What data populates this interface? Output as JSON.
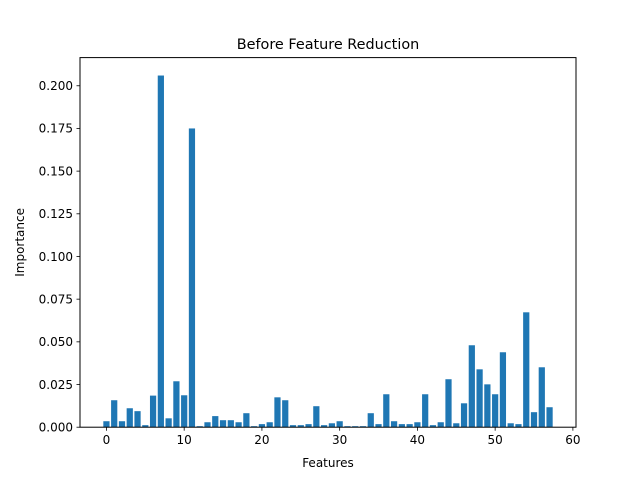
{
  "chart_data": {
    "type": "bar",
    "title": "Before Feature Reduction",
    "xlabel": "Features",
    "ylabel": "Importance",
    "xlim": [
      -3.4,
      60.4
    ],
    "ylim": [
      0,
      0.2165
    ],
    "xticks": [
      0,
      10,
      20,
      30,
      40,
      50,
      60
    ],
    "xtick_labels": [
      "0",
      "10",
      "20",
      "30",
      "40",
      "50",
      "60"
    ],
    "yticks": [
      0,
      0.025,
      0.05,
      0.075,
      0.1,
      0.125,
      0.15,
      0.175,
      0.2
    ],
    "ytick_labels": [
      "0.000",
      "0.025",
      "0.050",
      "0.075",
      "0.100",
      "0.125",
      "0.150",
      "0.175",
      "0.200"
    ],
    "bar_color": "#1f77b4",
    "grid": false,
    "legend": "none",
    "x": [
      0,
      1,
      2,
      3,
      4,
      5,
      6,
      7,
      8,
      9,
      10,
      11,
      12,
      13,
      14,
      15,
      16,
      17,
      18,
      19,
      20,
      21,
      22,
      23,
      24,
      25,
      26,
      27,
      28,
      29,
      30,
      31,
      32,
      33,
      34,
      35,
      36,
      37,
      38,
      39,
      40,
      41,
      42,
      43,
      44,
      45,
      46,
      47,
      48,
      49,
      50,
      51,
      52,
      53,
      54,
      55,
      56,
      57
    ],
    "values": [
      0.0035,
      0.0158,
      0.0035,
      0.0111,
      0.0094,
      0.0012,
      0.0185,
      0.206,
      0.0052,
      0.0269,
      0.0187,
      0.175,
      0.0006,
      0.0029,
      0.0065,
      0.0041,
      0.0041,
      0.0029,
      0.0082,
      0.0006,
      0.0018,
      0.0029,
      0.0175,
      0.0158,
      0.0012,
      0.0012,
      0.0018,
      0.0123,
      0.0012,
      0.0023,
      0.0035,
      0.0006,
      0.0006,
      0.0006,
      0.0082,
      0.0018,
      0.0193,
      0.0035,
      0.0018,
      0.0018,
      0.0029,
      0.0193,
      0.0012,
      0.0029,
      0.0281,
      0.0023,
      0.014,
      0.048,
      0.0339,
      0.0251,
      0.0193,
      0.0439,
      0.0023,
      0.0018,
      0.0673,
      0.0088,
      0.0351,
      0.0117
    ]
  }
}
